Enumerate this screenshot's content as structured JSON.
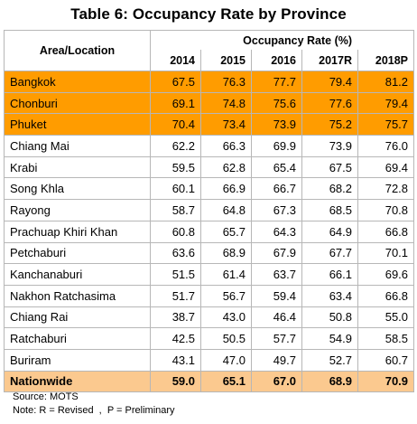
{
  "title": "Table 6: Occupancy Rate by Province",
  "header": {
    "area_label": "Area/Location",
    "group_label": "Occupancy Rate (%)",
    "years": [
      "2014",
      "2015",
      "2016",
      "2017R",
      "2018P"
    ]
  },
  "rows": [
    {
      "name": "Bangkok",
      "values": [
        "67.5",
        "76.3",
        "77.7",
        "79.4",
        "81.2"
      ],
      "style": "highlight"
    },
    {
      "name": "Chonburi",
      "values": [
        "69.1",
        "74.8",
        "75.6",
        "77.6",
        "79.4"
      ],
      "style": "highlight"
    },
    {
      "name": "Phuket",
      "values": [
        "70.4",
        "73.4",
        "73.9",
        "75.2",
        "75.7"
      ],
      "style": "highlight"
    },
    {
      "name": "Chiang Mai",
      "values": [
        "62.2",
        "66.3",
        "69.9",
        "73.9",
        "76.0"
      ],
      "style": "normal"
    },
    {
      "name": "Krabi",
      "values": [
        "59.5",
        "62.8",
        "65.4",
        "67.5",
        "69.4"
      ],
      "style": "normal"
    },
    {
      "name": "Song Khla",
      "values": [
        "60.1",
        "66.9",
        "66.7",
        "68.2",
        "72.8"
      ],
      "style": "normal"
    },
    {
      "name": "Rayong",
      "values": [
        "58.7",
        "64.8",
        "67.3",
        "68.5",
        "70.8"
      ],
      "style": "normal"
    },
    {
      "name": "Prachuap Khiri Khan",
      "values": [
        "60.8",
        "65.7",
        "64.3",
        "64.9",
        "66.8"
      ],
      "style": "normal"
    },
    {
      "name": "Petchaburi",
      "values": [
        "63.6",
        "68.9",
        "67.9",
        "67.7",
        "70.1"
      ],
      "style": "normal"
    },
    {
      "name": "Kanchanaburi",
      "values": [
        "51.5",
        "61.4",
        "63.7",
        "66.1",
        "69.6"
      ],
      "style": "normal"
    },
    {
      "name": "Nakhon Ratchasima",
      "values": [
        "51.7",
        "56.7",
        "59.4",
        "63.4",
        "66.8"
      ],
      "style": "normal"
    },
    {
      "name": "Chiang Rai",
      "values": [
        "38.7",
        "43.0",
        "46.4",
        "50.8",
        "55.0"
      ],
      "style": "normal"
    },
    {
      "name": "Ratchaburi",
      "values": [
        "42.5",
        "50.5",
        "57.7",
        "54.9",
        "58.5"
      ],
      "style": "normal"
    },
    {
      "name": "Buriram",
      "values": [
        "43.1",
        "47.0",
        "49.7",
        "52.7",
        "60.7"
      ],
      "style": "normal"
    },
    {
      "name": "Nationwide",
      "values": [
        "59.0",
        "65.1",
        "67.0",
        "68.9",
        "70.9"
      ],
      "style": "total"
    }
  ],
  "notes": {
    "source": "Source: MOTS",
    "legend": "Note: R = Revised  ,  P = Preliminary"
  },
  "colors": {
    "highlight_row": "#ff9c00",
    "total_row": "#fbc98f",
    "border": "#b7b7b7"
  }
}
